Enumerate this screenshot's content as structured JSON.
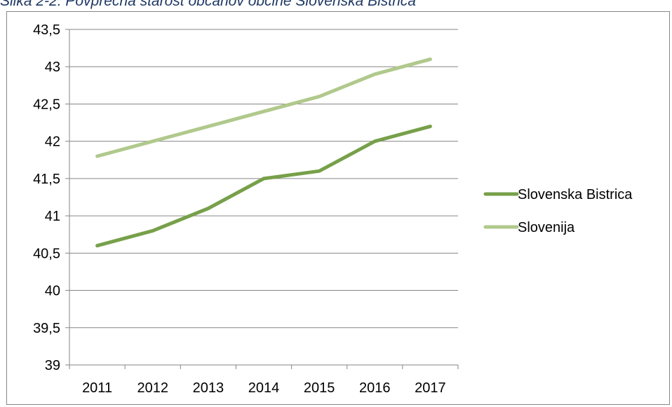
{
  "caption": "Slika 2-2: Povprečna starost občanov občine Slovenska Bistrica",
  "chart_data": {
    "type": "line",
    "title": "",
    "xlabel": "",
    "ylabel": "",
    "categories": [
      "2011",
      "2012",
      "2013",
      "2014",
      "2015",
      "2016",
      "2017"
    ],
    "ylim": [
      39,
      43.5
    ],
    "yticks": [
      39,
      39.5,
      40,
      40.5,
      41,
      41.5,
      42,
      42.5,
      43,
      43.5
    ],
    "ytick_labels": [
      "39",
      "39,5",
      "40",
      "40,5",
      "41",
      "41,5",
      "42",
      "42,5",
      "43",
      "43,5"
    ],
    "grid": "horizontal",
    "legend_position": "right",
    "series": [
      {
        "name": "Slovenska Bistrica",
        "color": "#77a04a",
        "values": [
          40.6,
          40.8,
          41.1,
          41.5,
          41.6,
          42.0,
          42.2
        ]
      },
      {
        "name": "Slovenija",
        "color": "#b0c98c",
        "values": [
          41.8,
          42.0,
          42.2,
          42.4,
          42.6,
          42.9,
          43.1
        ]
      }
    ]
  }
}
